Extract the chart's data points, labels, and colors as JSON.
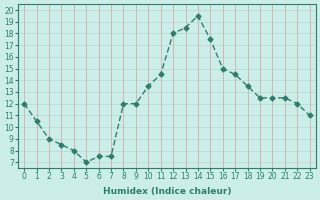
{
  "x": [
    0,
    1,
    2,
    3,
    4,
    5,
    6,
    7,
    8,
    9,
    10,
    11,
    12,
    13,
    14,
    15,
    16,
    17,
    18,
    19,
    20,
    21,
    22,
    23
  ],
  "y": [
    12,
    10.5,
    9,
    8.5,
    8,
    7,
    7.5,
    7.5,
    12,
    12,
    13.5,
    14.5,
    18,
    18.5,
    19.5,
    17.5,
    15,
    14.5,
    13.5,
    12.5,
    12.5,
    12.5,
    12,
    11
  ],
  "xlabel": "Humidex (Indice chaleur)",
  "ylabel": "",
  "xlim": [
    -0.5,
    23.5
  ],
  "ylim": [
    6.5,
    20.5
  ],
  "yticks": [
    7,
    8,
    9,
    10,
    11,
    12,
    13,
    14,
    15,
    16,
    17,
    18,
    19,
    20
  ],
  "xticks": [
    0,
    1,
    2,
    3,
    4,
    5,
    6,
    7,
    8,
    9,
    10,
    11,
    12,
    13,
    14,
    15,
    16,
    17,
    18,
    19,
    20,
    21,
    22,
    23
  ],
  "line_color": "#2e7d6e",
  "bg_color": "#cceee8",
  "grid_color_h": "#b8d8d2",
  "grid_color_v": "#d4a0a0",
  "marker": "D",
  "marker_size": 2.5,
  "line_width": 1.0,
  "label_fontsize": 6.5,
  "tick_fontsize": 5.5
}
